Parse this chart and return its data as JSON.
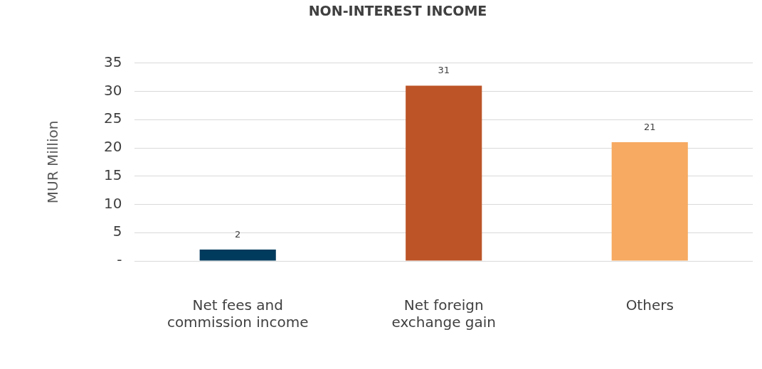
{
  "chart_data": {
    "type": "bar",
    "title": "NON-INTEREST INCOME",
    "ylabel": "MUR Million",
    "categories": [
      "Net fees and commission income",
      "Net foreign exchange gain",
      "Others"
    ],
    "values": [
      2,
      31,
      21
    ],
    "colors": [
      "#003a5c",
      "#bc5427",
      "#f7aa62"
    ],
    "ylim": [
      0,
      35
    ],
    "yticks": [
      {
        "value": 0,
        "label": "-"
      },
      5,
      10,
      15,
      20,
      25,
      30,
      35
    ],
    "grid": "y",
    "data_labels": true
  }
}
